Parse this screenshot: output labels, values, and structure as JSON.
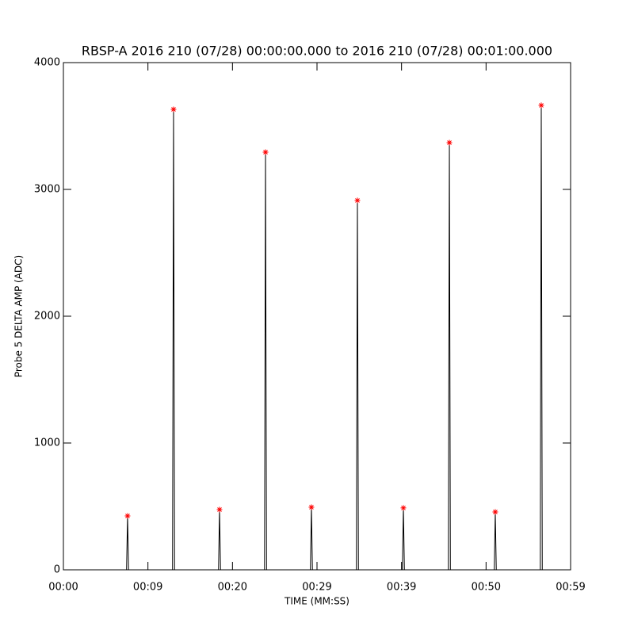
{
  "chart_data": {
    "type": "line",
    "title": "RBSP-A 2016 210 (07/28) 00:00:00.000 to 2016 210 (07/28) 00:01:00.000",
    "x_label": "TIME (MM:SS)",
    "y_label": "Probe 5 DELTA AMP (ADC)",
    "xlim": [
      0,
      60
    ],
    "ylim": [
      0,
      4000
    ],
    "xticks": [
      {
        "value": 0,
        "label": "00:00"
      },
      {
        "value": 10,
        "label": "00:09"
      },
      {
        "value": 20,
        "label": "00:20"
      },
      {
        "value": 30,
        "label": "00:29"
      },
      {
        "value": 40,
        "label": "00:39"
      },
      {
        "value": 50,
        "label": "00:50"
      },
      {
        "value": 60,
        "label": "00:59"
      }
    ],
    "yticks": [
      0,
      1000,
      2000,
      3000,
      4000
    ],
    "color": "#000000",
    "x": [
      0,
      7.47,
      7.59,
      7.71,
      12.91,
      13.03,
      13.15,
      18.35,
      18.47,
      18.59,
      23.79,
      23.91,
      24.03,
      29.22,
      29.34,
      29.46,
      34.66,
      34.78,
      34.9,
      40.1,
      40.22,
      40.34,
      45.54,
      45.66,
      45.78,
      50.97,
      51.09,
      51.21,
      56.41,
      56.53,
      56.65,
      60
    ],
    "values": [
      0,
      0,
      425,
      0,
      0,
      3631,
      0,
      0,
      475,
      0,
      0,
      3294,
      0,
      0,
      494,
      0,
      0,
      2913,
      0,
      0,
      488,
      0,
      0,
      3369,
      0,
      0,
      456,
      0,
      0,
      3663,
      0,
      0
    ],
    "peaks": {
      "color": "#ff0000",
      "x": [
        7.59,
        13.03,
        18.47,
        23.91,
        29.34,
        34.78,
        40.22,
        45.66,
        51.09,
        56.53
      ],
      "values": [
        425,
        3631,
        475,
        3294,
        494,
        2913,
        488,
        3369,
        456,
        3663
      ]
    }
  }
}
